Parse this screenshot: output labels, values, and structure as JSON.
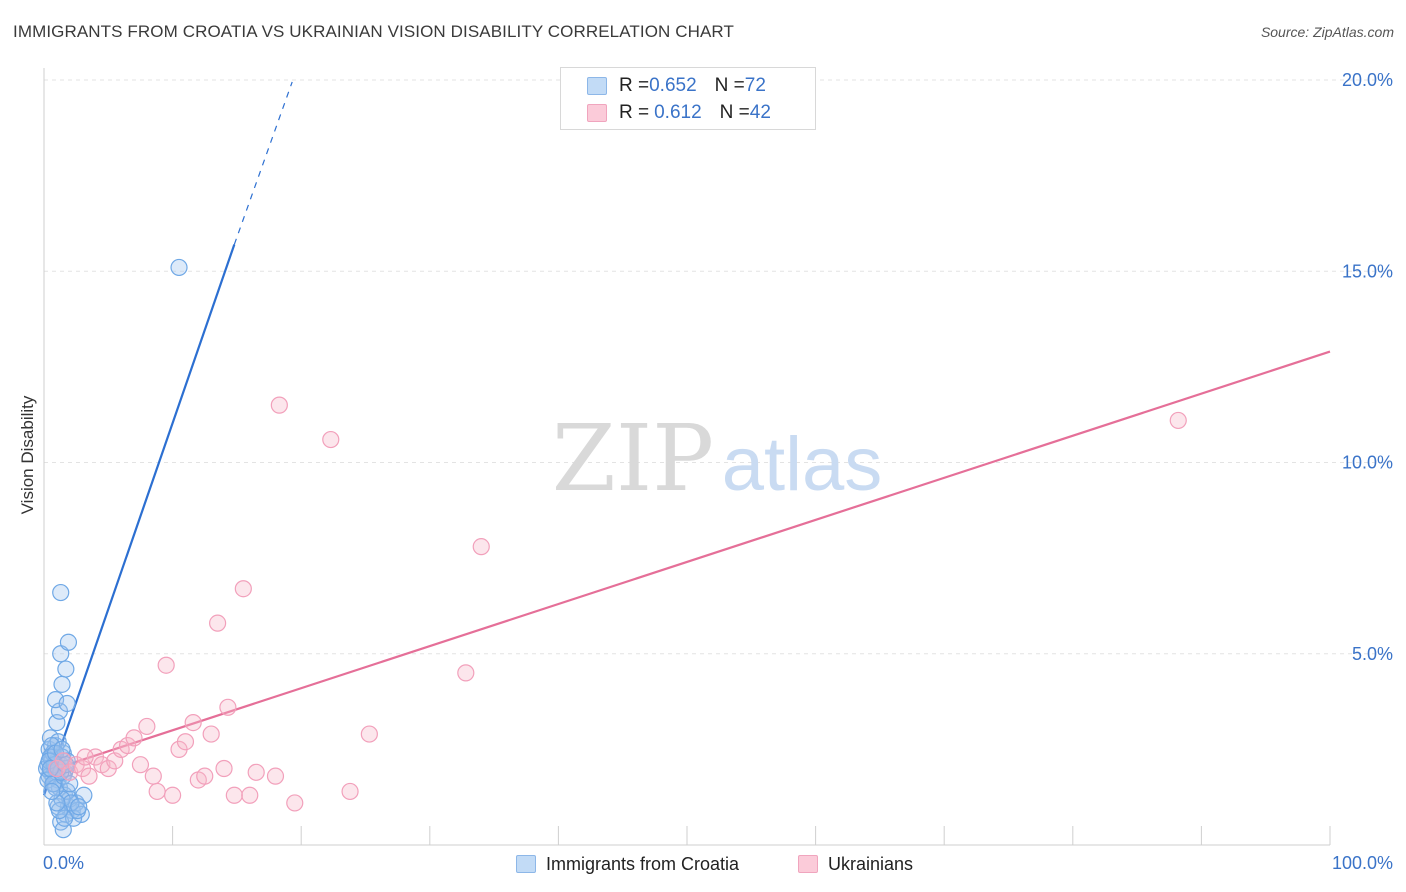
{
  "title": "IMMIGRANTS FROM CROATIA VS UKRAINIAN VISION DISABILITY CORRELATION CHART",
  "source": "Source: ZipAtlas.com",
  "watermark": {
    "zip": "ZIP",
    "atlas": "atlas"
  },
  "legend": {
    "rows": [
      {
        "r_label": "R = ",
        "r_value": "0.652",
        "n_label": "N = ",
        "n_value": "72",
        "color": "#9ec4ee"
      },
      {
        "r_label": "R = ",
        "r_value": "0.612",
        "n_label": "N = ",
        "n_value": "42",
        "color": "#f6b6c9"
      }
    ]
  },
  "bottom_legend": [
    {
      "label": "Immigrants from Croatia",
      "color": "#9ec4ee"
    },
    {
      "label": "Ukrainians",
      "color": "#f6b6c9"
    }
  ],
  "chart_data": {
    "type": "scatter",
    "title": "IMMIGRANTS FROM CROATIA VS UKRAINIAN VISION DISABILITY CORRELATION CHART",
    "xlabel": "",
    "ylabel": "Vision Disability",
    "xlim": [
      0,
      100
    ],
    "ylim": [
      0,
      20
    ],
    "x_tick_labels": [
      "0.0%",
      "100.0%"
    ],
    "y_ticks": [
      5,
      10,
      15,
      20
    ],
    "y_tick_labels": [
      "5.0%",
      "10.0%",
      "15.0%",
      "20.0%"
    ],
    "grid": true,
    "legend_position": "top-center",
    "series": [
      {
        "name": "Immigrants from Croatia",
        "color": "#6fa8e6",
        "line_color": "#2c6fd1",
        "r": 0.652,
        "n": 72,
        "trend": {
          "x0": 0.0,
          "y0": 1.3,
          "x1": 14.8,
          "y1": 15.7,
          "dash_to_x": 19.3,
          "dash_to_y": 19.95
        },
        "points": [
          [
            0.3,
            2.1
          ],
          [
            0.5,
            1.9
          ],
          [
            0.6,
            2.3
          ],
          [
            0.8,
            2.0
          ],
          [
            0.4,
            2.5
          ],
          [
            0.7,
            1.8
          ],
          [
            1.0,
            2.2
          ],
          [
            1.2,
            2.0
          ],
          [
            0.9,
            2.6
          ],
          [
            0.5,
            2.8
          ],
          [
            1.5,
            2.4
          ],
          [
            1.1,
            1.7
          ],
          [
            0.6,
            2.2
          ],
          [
            0.8,
            1.6
          ],
          [
            1.3,
            2.1
          ],
          [
            1.6,
            1.9
          ],
          [
            0.4,
            1.8
          ],
          [
            0.7,
            2.4
          ],
          [
            1.0,
            1.9
          ],
          [
            1.4,
            2.3
          ],
          [
            0.2,
            2.0
          ],
          [
            0.9,
            2.1
          ],
          [
            1.1,
            2.7
          ],
          [
            1.7,
            2.0
          ],
          [
            0.3,
            1.7
          ],
          [
            0.6,
            2.6
          ],
          [
            1.8,
            2.2
          ],
          [
            1.2,
            1.5
          ],
          [
            0.5,
            2.3
          ],
          [
            0.8,
            2.1
          ],
          [
            1.0,
            3.2
          ],
          [
            1.2,
            3.5
          ],
          [
            0.9,
            3.8
          ],
          [
            1.8,
            3.7
          ],
          [
            1.4,
            4.2
          ],
          [
            1.3,
            5.0
          ],
          [
            1.7,
            4.6
          ],
          [
            1.9,
            5.3
          ],
          [
            1.3,
            6.6
          ],
          [
            10.5,
            15.1
          ],
          [
            1.6,
            1.3
          ],
          [
            1.9,
            1.0
          ],
          [
            2.2,
            0.9
          ],
          [
            1.7,
            0.8
          ],
          [
            1.3,
            0.6
          ],
          [
            1.5,
            0.4
          ],
          [
            2.5,
            1.1
          ],
          [
            2.0,
            1.2
          ],
          [
            2.9,
            0.8
          ],
          [
            3.1,
            1.3
          ],
          [
            1.1,
            1.0
          ],
          [
            2.3,
            0.7
          ],
          [
            1.8,
            1.4
          ],
          [
            2.6,
            0.9
          ],
          [
            1.4,
            1.2
          ],
          [
            0.9,
            1.5
          ],
          [
            2.1,
            1.1
          ],
          [
            1.6,
            0.7
          ],
          [
            2.7,
            1.0
          ],
          [
            1.2,
            0.9
          ],
          [
            0.7,
            1.6
          ],
          [
            1.0,
            1.1
          ],
          [
            1.5,
            1.8
          ],
          [
            2.0,
            1.6
          ],
          [
            0.4,
            2.2
          ],
          [
            0.6,
            1.4
          ],
          [
            1.3,
            1.9
          ],
          [
            0.9,
            2.4
          ],
          [
            1.1,
            2.0
          ],
          [
            1.7,
            2.1
          ],
          [
            0.5,
            2.0
          ],
          [
            1.4,
            2.5
          ]
        ]
      },
      {
        "name": "Ukrainians",
        "color": "#f2a0bb",
        "line_color": "#e56f98",
        "r": 0.612,
        "n": 42,
        "trend": {
          "x0": 0.0,
          "y0": 1.9,
          "x1": 100.0,
          "y1": 12.9
        },
        "points": [
          [
            1.0,
            2.0
          ],
          [
            1.5,
            2.2
          ],
          [
            2.0,
            1.9
          ],
          [
            2.5,
            2.1
          ],
          [
            3.0,
            2.0
          ],
          [
            3.5,
            1.8
          ],
          [
            4.0,
            2.3
          ],
          [
            4.5,
            2.1
          ],
          [
            5.0,
            2.0
          ],
          [
            5.5,
            2.2
          ],
          [
            6.0,
            2.5
          ],
          [
            6.5,
            2.6
          ],
          [
            7.0,
            2.8
          ],
          [
            7.5,
            2.1
          ],
          [
            8.0,
            3.1
          ],
          [
            8.5,
            1.8
          ],
          [
            8.8,
            1.4
          ],
          [
            9.5,
            4.7
          ],
          [
            10.0,
            1.3
          ],
          [
            10.5,
            2.5
          ],
          [
            11.0,
            2.7
          ],
          [
            11.6,
            3.2
          ],
          [
            12.0,
            1.7
          ],
          [
            12.5,
            1.8
          ],
          [
            13.0,
            2.9
          ],
          [
            13.5,
            5.8
          ],
          [
            14.0,
            2.0
          ],
          [
            14.3,
            3.6
          ],
          [
            14.8,
            1.3
          ],
          [
            15.5,
            6.7
          ],
          [
            16.0,
            1.3
          ],
          [
            16.5,
            1.9
          ],
          [
            18.0,
            1.8
          ],
          [
            18.3,
            11.5
          ],
          [
            19.5,
            1.1
          ],
          [
            22.3,
            10.6
          ],
          [
            23.8,
            1.4
          ],
          [
            25.3,
            2.9
          ],
          [
            32.8,
            4.5
          ],
          [
            34.0,
            7.8
          ],
          [
            88.2,
            11.1
          ],
          [
            3.2,
            2.3
          ]
        ]
      }
    ]
  }
}
